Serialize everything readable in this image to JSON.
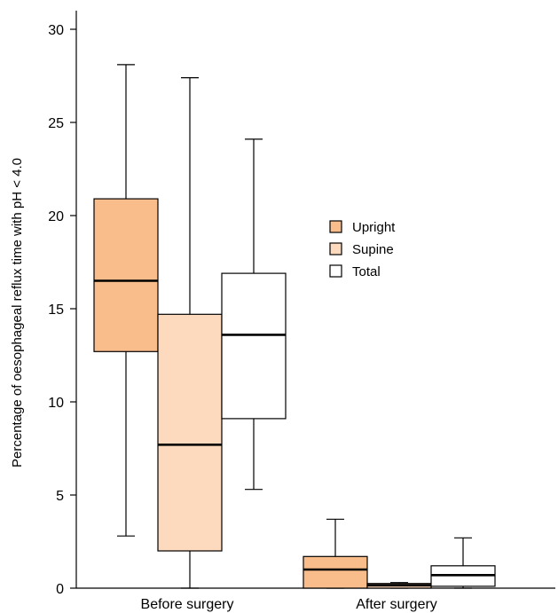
{
  "chart_data": {
    "type": "boxplot",
    "title": "",
    "xlabel": "",
    "ylabel": "Percentage of oesophageal reflux time with pH < 4.0",
    "ylim": [
      0,
      31
    ],
    "yticks": [
      0,
      5,
      10,
      15,
      20,
      25,
      30
    ],
    "categories": [
      "Before surgery",
      "After surgery"
    ],
    "legend_position": "right",
    "grid": false,
    "series": [
      {
        "name": "Upright",
        "color": "#f9bd8c",
        "boxes": [
          {
            "category": "Before surgery",
            "whisker_low": 2.8,
            "q1": 12.7,
            "median": 16.5,
            "q3": 20.9,
            "whisker_high": 28.1
          },
          {
            "category": "After surgery",
            "whisker_low": 0.0,
            "q1": 0.0,
            "median": 1.0,
            "q3": 1.7,
            "whisker_high": 3.7
          }
        ]
      },
      {
        "name": "Supine",
        "color": "#fdd9bd",
        "boxes": [
          {
            "category": "Before surgery",
            "whisker_low": 0.0,
            "q1": 2.0,
            "median": 7.7,
            "q3": 14.7,
            "whisker_high": 27.4
          },
          {
            "category": "After surgery",
            "whisker_low": 0.0,
            "q1": 0.0,
            "median": 0.15,
            "q3": 0.25,
            "whisker_high": 0.3
          }
        ]
      },
      {
        "name": "Total",
        "color": "#ffffff",
        "boxes": [
          {
            "category": "Before surgery",
            "whisker_low": 5.3,
            "q1": 9.1,
            "median": 13.6,
            "q3": 16.9,
            "whisker_high": 24.1
          },
          {
            "category": "After surgery",
            "whisker_low": 0.0,
            "q1": 0.1,
            "median": 0.7,
            "q3": 1.2,
            "whisker_high": 2.7
          }
        ]
      }
    ]
  }
}
